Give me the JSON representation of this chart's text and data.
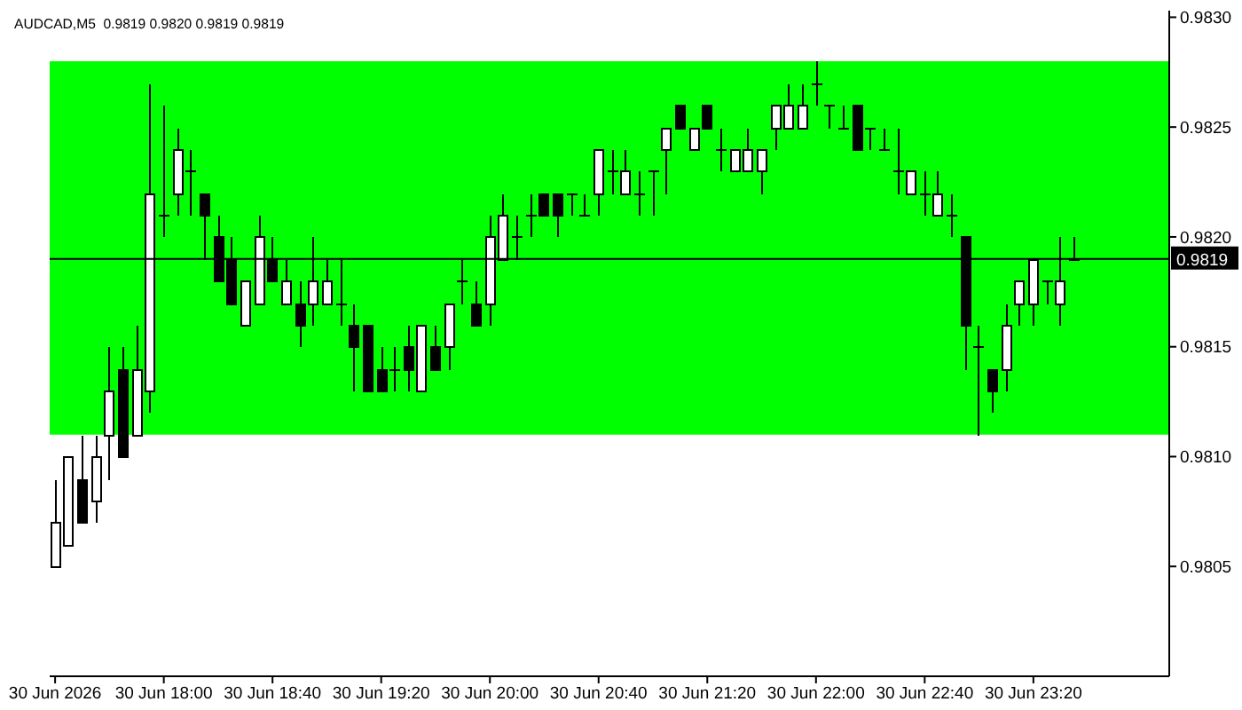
{
  "chart_data": {
    "type": "candlestick",
    "title": "AUDCAD,M5  0.9819 0.9820 0.9819 0.9819",
    "x": [
      "2026-06-30T17:20",
      "2026-06-30T17:25",
      "2026-06-30T17:30",
      "2026-06-30T17:35",
      "2026-06-30T17:40",
      "2026-06-30T17:45",
      "2026-06-30T17:50",
      "2026-06-30T17:55",
      "2026-06-30T18:00",
      "2026-06-30T18:05",
      "2026-06-30T18:10",
      "2026-06-30T18:15",
      "2026-06-30T18:20",
      "2026-06-30T18:25",
      "2026-06-30T18:30",
      "2026-06-30T18:35",
      "2026-06-30T18:40",
      "2026-06-30T18:45",
      "2026-06-30T18:50",
      "2026-06-30T18:55",
      "2026-06-30T19:00",
      "2026-06-30T19:05",
      "2026-06-30T19:10",
      "2026-06-30T19:15",
      "2026-06-30T19:20",
      "2026-06-30T19:25",
      "2026-06-30T19:30",
      "2026-06-30T19:35",
      "2026-06-30T19:40",
      "2026-06-30T19:45",
      "2026-06-30T19:50",
      "2026-06-30T19:55",
      "2026-06-30T20:00",
      "2026-06-30T20:05",
      "2026-06-30T20:10",
      "2026-06-30T20:15",
      "2026-06-30T20:20",
      "2026-06-30T20:25",
      "2026-06-30T20:30",
      "2026-06-30T20:35",
      "2026-06-30T20:40",
      "2026-06-30T20:45",
      "2026-06-30T20:50",
      "2026-06-30T20:55",
      "2026-06-30T21:00",
      "2026-06-30T21:05",
      "2026-06-30T21:10",
      "2026-06-30T21:15",
      "2026-06-30T21:20",
      "2026-06-30T21:25",
      "2026-06-30T21:30",
      "2026-06-30T21:35",
      "2026-06-30T21:40",
      "2026-06-30T21:45",
      "2026-06-30T21:50",
      "2026-06-30T21:55",
      "2026-06-30T22:00",
      "2026-06-30T22:05",
      "2026-06-30T22:10",
      "2026-06-30T22:15",
      "2026-06-30T22:20",
      "2026-06-30T22:25",
      "2026-06-30T22:30",
      "2026-06-30T22:35",
      "2026-06-30T22:40",
      "2026-06-30T22:45",
      "2026-06-30T22:50",
      "2026-06-30T22:55",
      "2026-06-30T23:00",
      "2026-06-30T23:05",
      "2026-06-30T23:10",
      "2026-06-30T23:15",
      "2026-06-30T23:20",
      "2026-06-30T23:25",
      "2026-06-30T23:30",
      "2026-06-30T23:35"
    ],
    "ohlc": [
      [
        0.9805,
        0.9809,
        0.9805,
        0.9807
      ],
      [
        0.9806,
        0.981,
        0.9806,
        0.981
      ],
      [
        0.9809,
        0.9811,
        0.9807,
        0.9807
      ],
      [
        0.9808,
        0.9811,
        0.9807,
        0.981
      ],
      [
        0.9811,
        0.9815,
        0.9809,
        0.9813
      ],
      [
        0.9814,
        0.9815,
        0.981,
        0.981
      ],
      [
        0.9811,
        0.9816,
        0.9811,
        0.9814
      ],
      [
        0.9813,
        0.9827,
        0.9812,
        0.9822
      ],
      [
        0.9821,
        0.9826,
        0.982,
        0.9821
      ],
      [
        0.9822,
        0.9825,
        0.9821,
        0.9824
      ],
      [
        0.9823,
        0.9824,
        0.9821,
        0.9823
      ],
      [
        0.9822,
        0.9822,
        0.9819,
        0.9821
      ],
      [
        0.982,
        0.9821,
        0.9818,
        0.9818
      ],
      [
        0.9819,
        0.982,
        0.9817,
        0.9817
      ],
      [
        0.9816,
        0.9818,
        0.9816,
        0.9818
      ],
      [
        0.9817,
        0.9821,
        0.9817,
        0.982
      ],
      [
        0.9819,
        0.982,
        0.9818,
        0.9818
      ],
      [
        0.9817,
        0.9819,
        0.9817,
        0.9818
      ],
      [
        0.9817,
        0.9818,
        0.9815,
        0.9816
      ],
      [
        0.9817,
        0.982,
        0.9816,
        0.9818
      ],
      [
        0.9817,
        0.9819,
        0.9817,
        0.9818
      ],
      [
        0.9817,
        0.9819,
        0.9816,
        0.9817
      ],
      [
        0.9816,
        0.9817,
        0.9813,
        0.9815
      ],
      [
        0.9816,
        0.9816,
        0.9813,
        0.9813
      ],
      [
        0.9814,
        0.9815,
        0.9813,
        0.9813
      ],
      [
        0.9814,
        0.9815,
        0.9813,
        0.9814
      ],
      [
        0.9815,
        0.9816,
        0.9813,
        0.9814
      ],
      [
        0.9813,
        0.9816,
        0.9813,
        0.9816
      ],
      [
        0.9815,
        0.9816,
        0.9814,
        0.9814
      ],
      [
        0.9815,
        0.9817,
        0.9814,
        0.9817
      ],
      [
        0.9818,
        0.9819,
        0.9817,
        0.9818
      ],
      [
        0.9817,
        0.9818,
        0.9816,
        0.9816
      ],
      [
        0.9817,
        0.9821,
        0.9816,
        0.982
      ],
      [
        0.9819,
        0.9822,
        0.9819,
        0.9821
      ],
      [
        0.982,
        0.9821,
        0.9819,
        0.982
      ],
      [
        0.9821,
        0.9822,
        0.982,
        0.9821
      ],
      [
        0.9822,
        0.9822,
        0.9821,
        0.9821
      ],
      [
        0.9822,
        0.9822,
        0.982,
        0.9821
      ],
      [
        0.9822,
        0.9822,
        0.9821,
        0.9822
      ],
      [
        0.9821,
        0.9822,
        0.9821,
        0.9821
      ],
      [
        0.9822,
        0.9824,
        0.9821,
        0.9824
      ],
      [
        0.9823,
        0.9824,
        0.9822,
        0.9823
      ],
      [
        0.9822,
        0.9824,
        0.9822,
        0.9823
      ],
      [
        0.9822,
        0.9823,
        0.9821,
        0.9822
      ],
      [
        0.9823,
        0.9823,
        0.9821,
        0.9823
      ],
      [
        0.9824,
        0.9825,
        0.9822,
        0.9825
      ],
      [
        0.9826,
        0.9826,
        0.9825,
        0.9825
      ],
      [
        0.9824,
        0.9825,
        0.9824,
        0.9825
      ],
      [
        0.9826,
        0.9826,
        0.9825,
        0.9825
      ],
      [
        0.9824,
        0.9825,
        0.9823,
        0.9824
      ],
      [
        0.9823,
        0.9824,
        0.9823,
        0.9824
      ],
      [
        0.9823,
        0.9825,
        0.9823,
        0.9824
      ],
      [
        0.9823,
        0.9824,
        0.9822,
        0.9824
      ],
      [
        0.9825,
        0.9826,
        0.9824,
        0.9826
      ],
      [
        0.9825,
        0.9827,
        0.9825,
        0.9826
      ],
      [
        0.9825,
        0.9827,
        0.9825,
        0.9826
      ],
      [
        0.9827,
        0.9828,
        0.9826,
        0.9827
      ],
      [
        0.9826,
        0.9826,
        0.9825,
        0.9826
      ],
      [
        0.9825,
        0.9826,
        0.9825,
        0.9825
      ],
      [
        0.9826,
        0.9826,
        0.9824,
        0.9824
      ],
      [
        0.9825,
        0.9825,
        0.9824,
        0.9825
      ],
      [
        0.9824,
        0.9825,
        0.9824,
        0.9824
      ],
      [
        0.9823,
        0.9825,
        0.9822,
        0.9823
      ],
      [
        0.9822,
        0.9823,
        0.9822,
        0.9823
      ],
      [
        0.9822,
        0.9823,
        0.9821,
        0.9822
      ],
      [
        0.9821,
        0.9823,
        0.9821,
        0.9822
      ],
      [
        0.9821,
        0.9822,
        0.982,
        0.9821
      ],
      [
        0.982,
        0.982,
        0.9814,
        0.9816
      ],
      [
        0.9815,
        0.9816,
        0.9811,
        0.9815
      ],
      [
        0.9814,
        0.9814,
        0.9812,
        0.9813
      ],
      [
        0.9814,
        0.9817,
        0.9813,
        0.9816
      ],
      [
        0.9817,
        0.9818,
        0.9816,
        0.9818
      ],
      [
        0.9817,
        0.9819,
        0.9816,
        0.9819
      ],
      [
        0.9818,
        0.9818,
        0.9817,
        0.9818
      ],
      [
        0.9817,
        0.982,
        0.9816,
        0.9818
      ],
      [
        0.9819,
        0.982,
        0.9819,
        0.9819
      ]
    ],
    "xlim": [
      "2026-06-30T17:18",
      "2026-07-01T00:10"
    ],
    "xticks": [
      {
        "value": "2026-06-30T17:20",
        "label": "30 Jun 2026"
      },
      {
        "value": "2026-06-30T18:00",
        "label": "30 Jun 18:00"
      },
      {
        "value": "2026-06-30T18:40",
        "label": "30 Jun 18:40"
      },
      {
        "value": "2026-06-30T19:20",
        "label": "30 Jun 19:20"
      },
      {
        "value": "2026-06-30T20:00",
        "label": "30 Jun 20:00"
      },
      {
        "value": "2026-06-30T20:40",
        "label": "30 Jun 20:40"
      },
      {
        "value": "2026-06-30T21:20",
        "label": "30 Jun 21:20"
      },
      {
        "value": "2026-06-30T22:00",
        "label": "30 Jun 22:00"
      },
      {
        "value": "2026-06-30T22:40",
        "label": "30 Jun 22:40"
      },
      {
        "value": "2026-06-30T23:20",
        "label": "30 Jun 23:20"
      }
    ],
    "ylim": [
      0.98,
      0.98303
    ],
    "yticks": [
      0.9805,
      {
        "value": 0.981,
        "label": "0.9810"
      },
      0.9815,
      {
        "value": 0.982,
        "label": "0.9820"
      },
      0.9825,
      {
        "value": 0.983,
        "label": "0.9830"
      }
    ],
    "ref_lines": [
      {
        "axis": "y",
        "value": 0.9819,
        "label": "0.9819",
        "color": "#000000"
      }
    ],
    "bands": [
      {
        "axis": "y",
        "from": 0.9811,
        "to": 0.9828,
        "color": "#00ff00"
      }
    ]
  }
}
